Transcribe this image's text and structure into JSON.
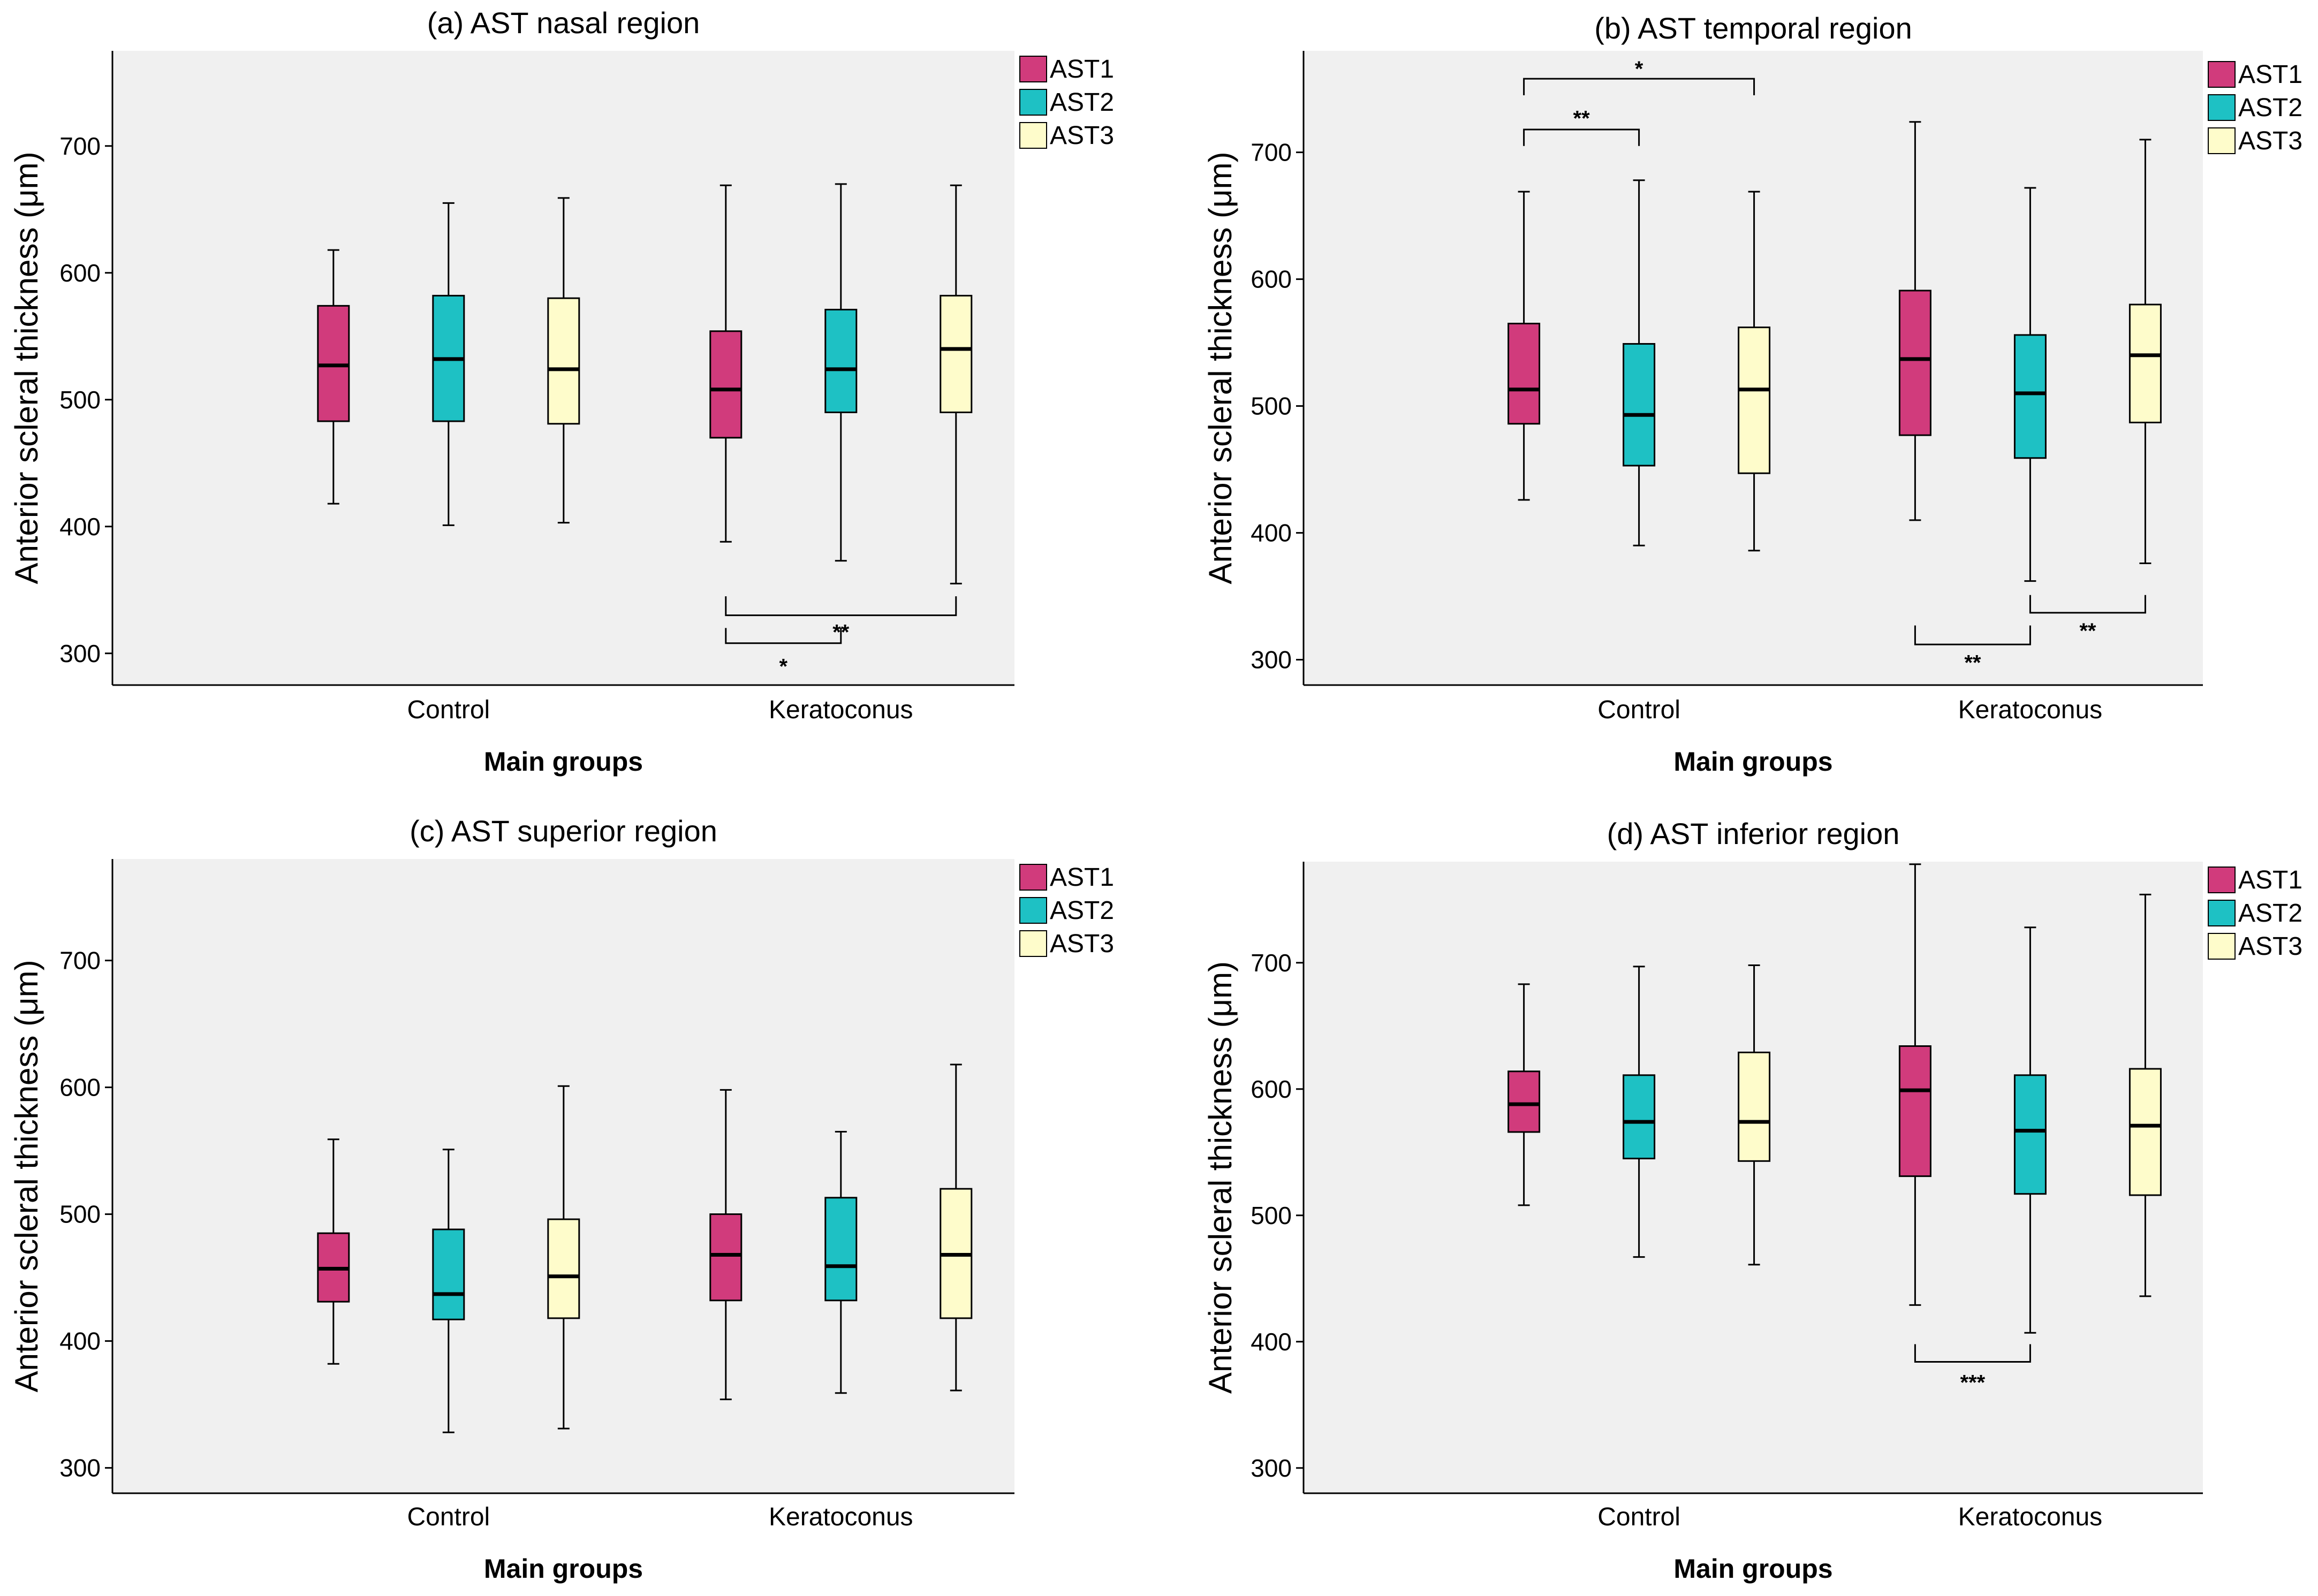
{
  "colors": {
    "AST1": "#d13b7c",
    "AST2": "#1ec1c4",
    "AST3": "#fefccb",
    "panel_bg": "#f0f0f0"
  },
  "chart_data": [
    {
      "type": "box",
      "title": "(a) AST nasal region",
      "xlabel": "Main groups",
      "ylabel": "Anterior scleral thickness (μm)",
      "ylim": [
        275,
        775
      ],
      "yticks": [
        "300",
        "400",
        "500",
        "600",
        "700"
      ],
      "categories": [
        "Control",
        "Keratoconus"
      ],
      "legend": [
        "AST1",
        "AST2",
        "AST3"
      ],
      "series": [
        {
          "name": "AST1",
          "boxes": [
            {
              "min": 418,
              "q1": 483,
              "median": 527,
              "q3": 574,
              "max": 618
            },
            {
              "min": 388,
              "q1": 470,
              "median": 508,
              "q3": 554,
              "max": 669
            }
          ]
        },
        {
          "name": "AST2",
          "boxes": [
            {
              "min": 401,
              "q1": 483,
              "median": 532,
              "q3": 582,
              "max": 655
            },
            {
              "min": 373,
              "q1": 490,
              "median": 524,
              "q3": 571,
              "max": 670
            }
          ]
        },
        {
          "name": "AST3",
          "boxes": [
            {
              "min": 403,
              "q1": 481,
              "median": 524,
              "q3": 580,
              "max": 659
            },
            {
              "min": 355,
              "q1": 490,
              "median": 540,
              "q3": 582,
              "max": 669
            }
          ]
        }
      ],
      "significance": [
        {
          "group": 1,
          "from": 0,
          "to": 1,
          "label": "*",
          "tick": 320,
          "bar": 308,
          "text": 290
        },
        {
          "group": 1,
          "from": 0,
          "to": 2,
          "label": "**",
          "tick": 345,
          "bar": 330,
          "text": 317
        }
      ]
    },
    {
      "type": "box",
      "title": "(b) AST temporal region",
      "xlabel": "Main groups",
      "ylabel": "Anterior scleral thickness (μm)",
      "ylim": [
        280,
        780
      ],
      "yticks": [
        "300",
        "400",
        "500",
        "600",
        "700"
      ],
      "categories": [
        "Control",
        "Keratoconus"
      ],
      "legend": [
        "AST1",
        "AST2",
        "AST3"
      ],
      "series": [
        {
          "name": "AST1",
          "boxes": [
            {
              "min": 426,
              "q1": 486,
              "median": 513,
              "q3": 565,
              "max": 669
            },
            {
              "min": 410,
              "q1": 477,
              "median": 537,
              "q3": 591,
              "max": 724
            }
          ]
        },
        {
          "name": "AST2",
          "boxes": [
            {
              "min": 390,
              "q1": 453,
              "median": 493,
              "q3": 549,
              "max": 678
            },
            {
              "min": 362,
              "q1": 459,
              "median": 510,
              "q3": 556,
              "max": 672
            }
          ]
        },
        {
          "name": "AST3",
          "boxes": [
            {
              "min": 386,
              "q1": 447,
              "median": 513,
              "q3": 562,
              "max": 669
            },
            {
              "min": 376,
              "q1": 487,
              "median": 540,
              "q3": 580,
              "max": 710
            }
          ]
        }
      ],
      "significance": [
        {
          "group": 0,
          "from": 0,
          "to": 1,
          "label": "**",
          "tick": 705,
          "bar": 718,
          "text": 727
        },
        {
          "group": 0,
          "from": 0,
          "to": 2,
          "label": "*",
          "tick": 745,
          "bar": 758,
          "text": 766
        },
        {
          "group": 1,
          "from": 0,
          "to": 1,
          "label": "**",
          "tick": 327,
          "bar": 312,
          "text": 298
        },
        {
          "group": 1,
          "from": 1,
          "to": 2,
          "label": "**",
          "tick": 351,
          "bar": 337,
          "text": 323
        }
      ]
    },
    {
      "type": "box",
      "title": "(c) AST superior region",
      "xlabel": "Main groups",
      "ylabel": "Anterior scleral thickness (μm)",
      "ylim": [
        280,
        780
      ],
      "yticks": [
        "300",
        "400",
        "500",
        "600",
        "700"
      ],
      "categories": [
        "Control",
        "Keratoconus"
      ],
      "legend": [
        "AST1",
        "AST2",
        "AST3"
      ],
      "series": [
        {
          "name": "AST1",
          "boxes": [
            {
              "min": 382,
              "q1": 431,
              "median": 457,
              "q3": 485,
              "max": 559
            },
            {
              "min": 354,
              "q1": 432,
              "median": 468,
              "q3": 500,
              "max": 598
            }
          ]
        },
        {
          "name": "AST2",
          "boxes": [
            {
              "min": 328,
              "q1": 417,
              "median": 437,
              "q3": 488,
              "max": 551
            },
            {
              "min": 359,
              "q1": 432,
              "median": 459,
              "q3": 513,
              "max": 565
            }
          ]
        },
        {
          "name": "AST3",
          "boxes": [
            {
              "min": 331,
              "q1": 418,
              "median": 451,
              "q3": 496,
              "max": 601
            },
            {
              "min": 361,
              "q1": 418,
              "median": 468,
              "q3": 520,
              "max": 618
            }
          ]
        }
      ],
      "significance": []
    },
    {
      "type": "box",
      "title": "(d) AST inferior region",
      "xlabel": "Main groups",
      "ylabel": "Anterior scleral thickness (μm)",
      "ylim": [
        280,
        780
      ],
      "yticks": [
        "300",
        "400",
        "500",
        "600",
        "700"
      ],
      "categories": [
        "Control",
        "Keratoconus"
      ],
      "legend": [
        "AST1",
        "AST2",
        "AST3"
      ],
      "series": [
        {
          "name": "AST1",
          "boxes": [
            {
              "min": 508,
              "q1": 566,
              "median": 588,
              "q3": 614,
              "max": 683
            },
            {
              "min": 429,
              "q1": 531,
              "median": 599,
              "q3": 634,
              "max": 778
            }
          ]
        },
        {
          "name": "AST2",
          "boxes": [
            {
              "min": 467,
              "q1": 545,
              "median": 574,
              "q3": 611,
              "max": 697
            },
            {
              "min": 407,
              "q1": 517,
              "median": 567,
              "q3": 611,
              "max": 728
            }
          ]
        },
        {
          "name": "AST3",
          "boxes": [
            {
              "min": 461,
              "q1": 543,
              "median": 574,
              "q3": 629,
              "max": 698
            },
            {
              "min": 436,
              "q1": 516,
              "median": 571,
              "q3": 616,
              "max": 754
            }
          ]
        }
      ],
      "significance": [
        {
          "group": 1,
          "from": 0,
          "to": 1,
          "label": "***",
          "tick": 398,
          "bar": 384,
          "text": 368
        }
      ]
    }
  ]
}
